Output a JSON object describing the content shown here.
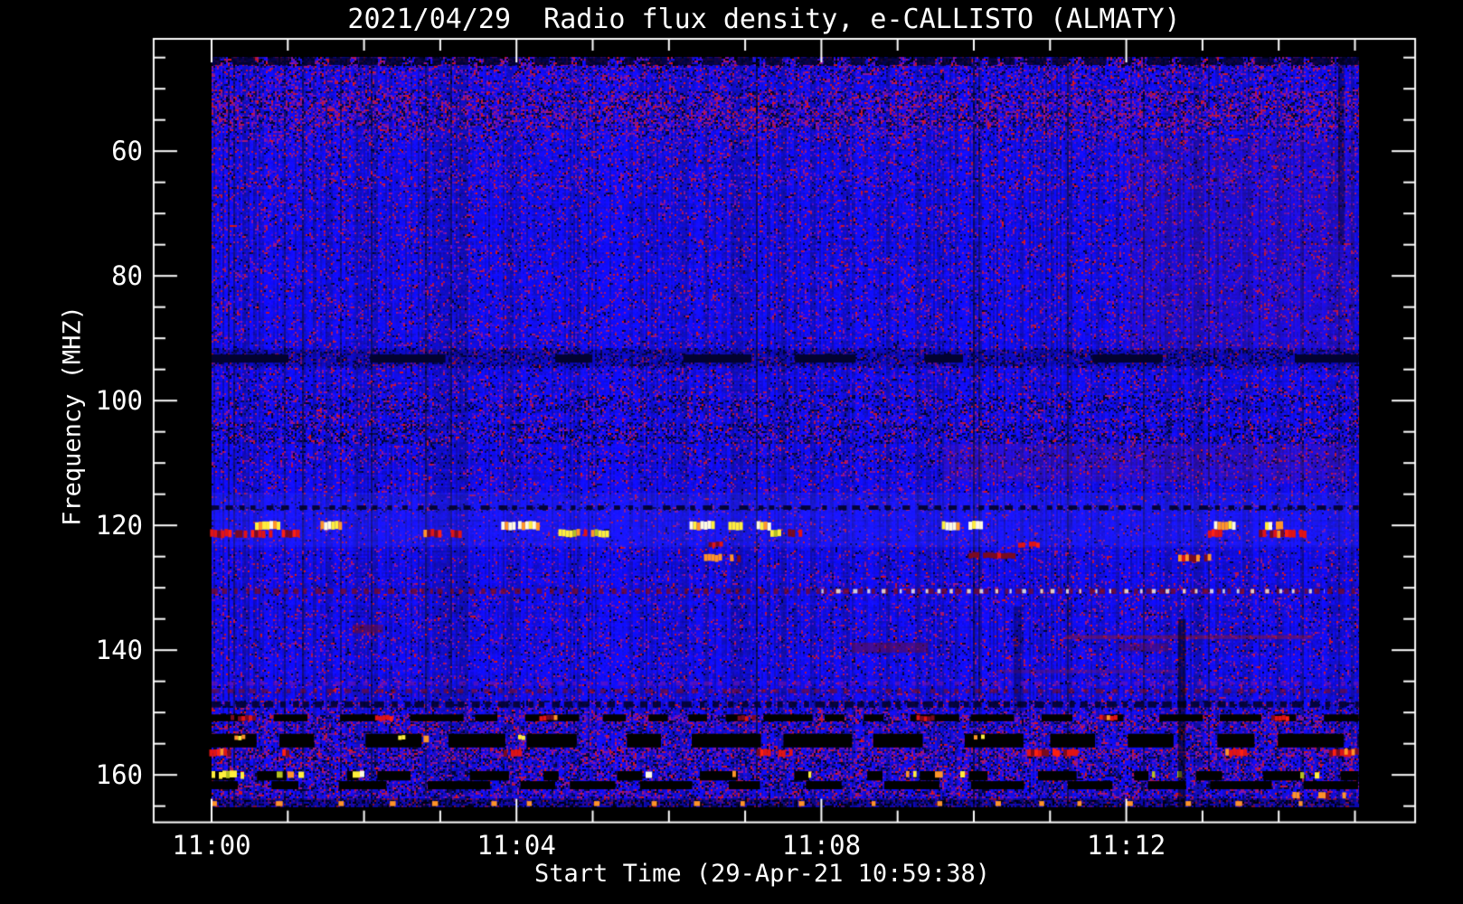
{
  "chart_data": {
    "type": "heatmap",
    "subtype": "radio-spectrogram",
    "title": "2021/04/29  Radio flux density, e-CALLISTO (ALMATY)",
    "date": "2021/04/29",
    "instrument": "e-CALLISTO",
    "station": "ALMATY",
    "xlabel": "Start Time (29-Apr-21 10:59:38)",
    "ylabel": "Frequency (MHZ)",
    "x_unit": "minutes_after_11:00",
    "x_frame": [
      -0.76,
      15.79
    ],
    "y_frame": [
      42.0,
      167.6
    ],
    "x_data_span": [
      0.0,
      15.05
    ],
    "y_data_span": [
      44.9,
      165.2
    ],
    "x_major_ticks": [
      {
        "v": 0,
        "label": "11:00"
      },
      {
        "v": 4,
        "label": "11:04"
      },
      {
        "v": 8,
        "label": "11:08"
      },
      {
        "v": 12,
        "label": "11:12"
      }
    ],
    "x_minor_ticks": [
      1,
      2,
      3,
      5,
      6,
      7,
      9,
      10,
      11,
      13,
      14,
      15
    ],
    "y_major_ticks": [
      {
        "v": 60,
        "label": "60"
      },
      {
        "v": 80,
        "label": "80"
      },
      {
        "v": 100,
        "label": "100"
      },
      {
        "v": 120,
        "label": "120"
      },
      {
        "v": 140,
        "label": "140"
      },
      {
        "v": 160,
        "label": "160"
      }
    ],
    "y_minor_ticks": [
      45,
      50,
      55,
      65,
      70,
      75,
      85,
      90,
      95,
      105,
      110,
      115,
      125,
      130,
      135,
      145,
      150,
      155,
      165
    ],
    "grid": false,
    "legend": false,
    "palette": {
      "page_bg": "#000000",
      "frame": "#ffffff",
      "text": "#ffffff",
      "base_blue": "#0c0cf0",
      "light_blue": "#3c3cff",
      "dark_navy": "#020230",
      "navy2": "#0a0a50",
      "black": "#000000",
      "purple1": "#6414b4",
      "purple2": "#8c14a0",
      "purple3": "#5a0ac8",
      "magenta": "#a01878",
      "red": "#e01414",
      "bright_red": "#ff2010",
      "dark_red": "#7a0a1e",
      "orange": "#ff9428",
      "yellow": "#ffee3c",
      "olive": "#b4c020",
      "white": "#fffae0",
      "pink_cloud": "#a01850"
    },
    "noise_bands": [
      {
        "f": [
          44.9,
          46.3
        ],
        "red": 0.45,
        "dark": 0.4
      },
      {
        "f": [
          46.3,
          49.0
        ],
        "red": 0.25,
        "dark": 0.15
      },
      {
        "f": [
          49.0,
          50.2
        ],
        "red": 0.18,
        "dark": 0.08
      },
      {
        "f": [
          50.2,
          56.0
        ],
        "red": 0.4,
        "dark": 0.2
      },
      {
        "f": [
          56.0,
          58.5
        ],
        "red": 0.25,
        "dark": 0.1
      },
      {
        "f": [
          58.5,
          63.0
        ],
        "red": 0.15,
        "dark": 0.06
      },
      {
        "f": [
          63.0,
          66.0
        ],
        "red": 0.2,
        "dark": 0.08
      },
      {
        "f": [
          66.0,
          91.5
        ],
        "red": 0.13,
        "dark": 0.05
      },
      {
        "f": [
          91.5,
          94.5
        ],
        "red": 0.15,
        "dark": 0.25
      },
      {
        "f": [
          94.5,
          99.0
        ],
        "red": 0.14,
        "dark": 0.07
      },
      {
        "f": [
          99.0,
          101.5
        ],
        "red": 0.18,
        "dark": 0.22
      },
      {
        "f": [
          101.5,
          103.5
        ],
        "red": 0.16,
        "dark": 0.12
      },
      {
        "f": [
          103.5,
          106.8
        ],
        "red": 0.2,
        "dark": 0.26
      },
      {
        "f": [
          106.8,
          108.3
        ],
        "red": 0.13,
        "dark": 0.08
      },
      {
        "f": [
          108.3,
          110.0
        ],
        "red": 0.16,
        "dark": 0.14
      },
      {
        "f": [
          110.0,
          114.8
        ],
        "red": 0.12,
        "dark": 0.05
      },
      {
        "f": [
          114.8,
          116.8
        ],
        "red": 0.08,
        "dark": 0.03
      },
      {
        "f": [
          116.8,
          117.5
        ],
        "red": 0.1,
        "dark": 0.28
      },
      {
        "f": [
          117.5,
          120.0
        ],
        "red": 0.06,
        "dark": 0.02
      },
      {
        "f": [
          120.0,
          124.0
        ],
        "red": 0.08,
        "dark": 0.03
      },
      {
        "f": [
          124.0,
          128.0
        ],
        "red": 0.1,
        "dark": 0.04
      },
      {
        "f": [
          128.0,
          131.5
        ],
        "red": 0.12,
        "dark": 0.05
      },
      {
        "f": [
          131.5,
          137.5
        ],
        "red": 0.12,
        "dark": 0.05
      },
      {
        "f": [
          137.5,
          141.0
        ],
        "red": 0.13,
        "dark": 0.06
      },
      {
        "f": [
          141.0,
          148.0
        ],
        "red": 0.11,
        "dark": 0.05
      },
      {
        "f": [
          148.0,
          150.3
        ],
        "red": 0.2,
        "dark": 0.15
      },
      {
        "f": [
          150.3,
          151.5
        ],
        "red": 0.45,
        "dark": 0.2
      },
      {
        "f": [
          151.5,
          153.4
        ],
        "red": 0.3,
        "dark": 0.18
      },
      {
        "f": [
          153.4,
          155.6
        ],
        "red": 0.25,
        "dark": 0.15
      },
      {
        "f": [
          155.6,
          157.2
        ],
        "red": 0.4,
        "dark": 0.2
      },
      {
        "f": [
          157.2,
          159.3
        ],
        "red": 0.28,
        "dark": 0.22
      },
      {
        "f": [
          159.3,
          160.9
        ],
        "red": 0.3,
        "dark": 0.25
      },
      {
        "f": [
          160.9,
          162.3
        ],
        "red": 0.28,
        "dark": 0.25
      },
      {
        "f": [
          162.3,
          163.9
        ],
        "red": 0.3,
        "dark": 0.2
      },
      {
        "f": [
          163.9,
          165.2
        ],
        "red": 0.25,
        "dark": 0.45
      }
    ],
    "features": [
      {
        "type": "tint",
        "f": [
          91.8,
          94.5
        ],
        "color": "#000040",
        "alpha": 0.25
      },
      {
        "type": "tint",
        "f": [
          114.8,
          123.5
        ],
        "color": "#3c3cff",
        "alpha": 0.2
      },
      {
        "type": "patch",
        "f": [
          107.0,
          113.0
        ],
        "t": [
          9.6,
          14.9
        ],
        "color": "#a01850",
        "alpha": 0.15
      },
      {
        "type": "patch",
        "f": [
          58.0,
          92.0
        ],
        "t": [
          12.0,
          15.0
        ],
        "color": "#901848",
        "alpha": 0.1
      },
      {
        "type": "dash_row",
        "f": [
          44.95,
          46.2
        ],
        "dash": [
          8,
          25
        ],
        "gap": [
          6,
          20
        ],
        "color": "dark_navy",
        "alpha": 0.85
      },
      {
        "type": "dash_row",
        "f": [
          92.6,
          93.9
        ],
        "dash": [
          40,
          95
        ],
        "gap": [
          45,
          160
        ],
        "color": "dark_navy",
        "alpha": 1.0
      },
      {
        "type": "dot_row",
        "f": [
          116.8,
          117.5
        ],
        "dash": [
          5,
          11
        ],
        "gap": [
          5,
          13
        ],
        "color": "dark_navy",
        "alpha": 0.95
      },
      {
        "type": "dot_row",
        "f": [
          130.1,
          131.0
        ],
        "dash": [
          3,
          7
        ],
        "gap": [
          4,
          10
        ],
        "color": "dark_red",
        "alpha": 0.75
      },
      {
        "type": "dot_row",
        "f": [
          130.2,
          130.9
        ],
        "t": [
          8.0,
          14.6
        ],
        "dash": [
          2,
          5
        ],
        "gap": [
          8,
          16
        ],
        "color": "white",
        "alpha": 0.8
      },
      {
        "type": "patch",
        "f": [
          135.9,
          137.3
        ],
        "t": [
          1.85,
          2.25
        ],
        "color": "#7a0a1e",
        "alpha": 0.5
      },
      {
        "type": "patch",
        "f": [
          138.8,
          140.4
        ],
        "t": [
          8.4,
          9.4
        ],
        "color": "#7a0a1e",
        "alpha": 0.45
      },
      {
        "type": "patch",
        "f": [
          138.9,
          140.2
        ],
        "t": [
          11.9,
          12.55
        ],
        "color": "#7a0a1e",
        "alpha": 0.4
      },
      {
        "type": "tint",
        "f": [
          137.6,
          138.2
        ],
        "t": [
          11.2,
          14.45
        ],
        "color": "#8c1430",
        "alpha": 0.55
      },
      {
        "type": "tint",
        "f": [
          143.1,
          143.7
        ],
        "t": [
          10.3,
          12.7
        ],
        "color": "#8c1430",
        "alpha": 0.35
      },
      {
        "type": "dot_row",
        "f": [
          145.0,
          145.7
        ],
        "dash": [
          4,
          9
        ],
        "gap": [
          6,
          14
        ],
        "color": "purple2",
        "alpha": 0.5
      },
      {
        "type": "dot_row",
        "f": [
          146.2,
          146.9
        ],
        "dash": [
          4,
          9
        ],
        "gap": [
          5,
          12
        ],
        "color": "dark_red",
        "alpha": 0.6
      },
      {
        "type": "dot_row",
        "f": [
          148.2,
          149.2
        ],
        "dash": [
          5,
          12
        ],
        "gap": [
          4,
          10
        ],
        "color": "dark_navy",
        "alpha": 0.9
      },
      {
        "type": "dash_row",
        "f": [
          150.3,
          151.4
        ],
        "dash": [
          18,
          60
        ],
        "gap": [
          10,
          40
        ],
        "color": "black",
        "alpha": 1.0
      },
      {
        "type": "block_row",
        "f": [
          153.4,
          155.6
        ],
        "block": [
          25,
          80
        ],
        "gap": [
          15,
          60
        ],
        "color": "black",
        "spark": 0.06
      },
      {
        "type": "block_row",
        "f": [
          159.4,
          160.9
        ],
        "block": [
          12,
          45
        ],
        "gap": [
          18,
          70
        ],
        "color": "black",
        "spark": 0.0
      },
      {
        "type": "specks_row",
        "f": [
          159.3,
          160.6
        ],
        "colors": [
          "yellow",
          "olive",
          "white",
          "orange"
        ],
        "prob": 0.05,
        "left_boost": 3.0
      },
      {
        "type": "dash_row",
        "f": [
          161.0,
          162.3
        ],
        "dash": [
          20,
          75
        ],
        "gap": [
          14,
          55
        ],
        "color": "black",
        "alpha": 1.0
      },
      {
        "type": "tint",
        "f": [
          163.8,
          165.2
        ],
        "color": "#000030",
        "alpha": 0.35
      },
      {
        "type": "dot_row",
        "f": [
          164.2,
          165.0
        ],
        "dash": [
          4,
          8
        ],
        "gap": [
          30,
          80
        ],
        "color": "orange",
        "alpha": 1.0
      },
      {
        "type": "vband",
        "t": [
          12.68,
          12.78
        ],
        "f": [
          135.0,
          165.2
        ],
        "color": "#000000",
        "alpha": 0.55
      },
      {
        "type": "vband",
        "t": [
          10.52,
          10.62
        ],
        "f": [
          133.0,
          150.0
        ],
        "color": "#000000",
        "alpha": 0.3
      },
      {
        "type": "vband",
        "t": [
          14.78,
          14.86
        ],
        "f": [
          45.0,
          75.0
        ],
        "color": "#000000",
        "alpha": 0.35
      }
    ],
    "bursts": [
      {
        "style": "bright",
        "f": [
          119.4,
          120.7
        ],
        "segments": [
          [
            0.57,
            0.88
          ],
          [
            1.38,
            1.7
          ],
          [
            3.8,
            3.98
          ],
          [
            4.02,
            4.28
          ],
          [
            6.27,
            6.58
          ],
          [
            6.78,
            6.96
          ],
          [
            7.15,
            7.32
          ],
          [
            9.58,
            9.78
          ],
          [
            9.93,
            10.13
          ],
          [
            13.15,
            13.42
          ],
          [
            13.82,
            14.04
          ]
        ]
      },
      {
        "style": "yellowmix",
        "f": [
          120.7,
          121.8
        ],
        "segments": [
          [
            4.55,
            5.17
          ],
          [
            7.33,
            7.49
          ]
        ]
      },
      {
        "style": "red",
        "f": [
          120.7,
          121.9
        ],
        "segments": [
          [
            -0.02,
            0.38
          ],
          [
            0.42,
            0.79
          ],
          [
            0.92,
            1.14
          ],
          [
            2.78,
            2.98
          ],
          [
            3.14,
            3.27
          ],
          [
            7.56,
            7.71
          ],
          [
            13.07,
            13.22
          ],
          [
            13.74,
            14.04
          ],
          [
            14.08,
            14.34
          ]
        ]
      },
      {
        "style": "red",
        "f": [
          122.7,
          123.5
        ],
        "segments": [
          [
            6.52,
            6.68
          ],
          [
            10.58,
            10.82
          ]
        ]
      },
      {
        "style": "orange",
        "f": [
          124.7,
          125.8
        ],
        "segments": [
          [
            6.46,
            6.67
          ],
          [
            6.8,
            6.94
          ],
          [
            12.68,
            12.92
          ],
          [
            13.02,
            13.1
          ]
        ]
      },
      {
        "style": "darkred",
        "f": [
          124.4,
          125.3
        ],
        "segments": [
          [
            9.93,
            10.5
          ]
        ]
      },
      {
        "style": "red",
        "f": [
          150.5,
          151.3
        ],
        "segments": [
          [
            0.25,
            0.55
          ],
          [
            2.05,
            2.35
          ],
          [
            4.3,
            4.5
          ],
          [
            6.9,
            7.1
          ],
          [
            9.2,
            9.45
          ],
          [
            11.6,
            11.85
          ],
          [
            13.9,
            14.1
          ]
        ]
      },
      {
        "style": "bright",
        "f": [
          153.6,
          154.3
        ],
        "segments": [
          [
            0.3,
            0.4
          ],
          [
            2.4,
            2.5
          ],
          [
            4.02,
            4.1
          ],
          [
            10.0,
            10.1
          ]
        ]
      },
      {
        "style": "red",
        "f": [
          155.9,
          157.0
        ],
        "segments": [
          [
            -0.03,
            0.22
          ],
          [
            0.88,
            1.02
          ],
          [
            3.83,
            4.02
          ],
          [
            7.15,
            7.62
          ],
          [
            10.7,
            11.32
          ],
          [
            13.3,
            13.58
          ],
          [
            14.66,
            14.98
          ]
        ]
      },
      {
        "style": "orange",
        "f": [
          155.9,
          156.9
        ],
        "segments": [
          [
            14.86,
            15.02
          ]
        ]
      },
      {
        "style": "yellow",
        "f": [
          159.4,
          160.5
        ],
        "segments": [
          [
            0.0,
            0.4
          ]
        ]
      },
      {
        "style": "orange",
        "f": [
          162.8,
          163.8
        ],
        "segments": [
          [
            14.18,
            14.4
          ],
          [
            14.52,
            14.64
          ],
          [
            14.74,
            14.86
          ]
        ]
      }
    ]
  }
}
